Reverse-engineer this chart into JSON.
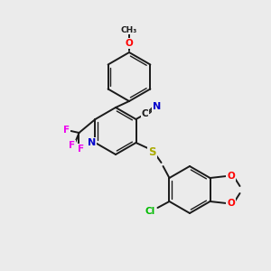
{
  "background_color": "#ebebeb",
  "bond_color": "#1a1a1a",
  "figsize": [
    3.0,
    3.0
  ],
  "dpi": 100,
  "atom_colors": {
    "N": "#0000cc",
    "S": "#aaaa00",
    "O": "#ff0000",
    "Cl": "#00bb00",
    "F": "#ee00ee",
    "C": "#1a1a1a",
    "N_cyano": "#0000cc"
  }
}
